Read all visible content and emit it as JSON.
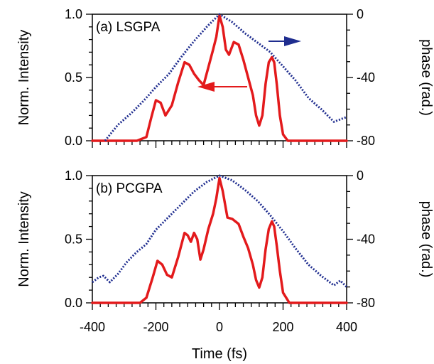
{
  "chart_data": [
    {
      "type": "line",
      "panel_label": "(a) LSGPA",
      "x_range": [
        -400,
        400
      ],
      "ylim_left": [
        0,
        1.0
      ],
      "ylim_right": [
        -80,
        0
      ],
      "ylabel_left": "Norm. Intensity",
      "ylabel_right": "phase (rad.)",
      "xlabel": "",
      "x_ticks": [
        -400,
        -200,
        0,
        200,
        400
      ],
      "y_ticks_left": [
        "0.0",
        "0.5",
        "1.0"
      ],
      "y_ticks_right": [
        "-80",
        "-40",
        "0"
      ],
      "grid": false,
      "series": [
        {
          "axis": "left",
          "color": "#e31a1c",
          "style": "solid",
          "x": [
            -400,
            -300,
            -260,
            -230,
            -215,
            -200,
            -185,
            -170,
            -150,
            -130,
            -110,
            -95,
            -80,
            -65,
            -50,
            -35,
            -20,
            -10,
            0,
            10,
            20,
            30,
            45,
            60,
            75,
            90,
            105,
            115,
            125,
            135,
            145,
            155,
            165,
            172,
            180,
            190,
            200,
            215,
            230,
            260,
            300,
            400
          ],
          "y": [
            0.0,
            0.0,
            0.0,
            0.03,
            0.18,
            0.32,
            0.3,
            0.2,
            0.28,
            0.46,
            0.62,
            0.6,
            0.53,
            0.48,
            0.44,
            0.58,
            0.72,
            0.82,
            0.99,
            0.9,
            0.72,
            0.68,
            0.78,
            0.76,
            0.64,
            0.5,
            0.36,
            0.2,
            0.12,
            0.2,
            0.45,
            0.62,
            0.66,
            0.62,
            0.45,
            0.2,
            0.05,
            0.0,
            0.0,
            0.0,
            0.0,
            0.0
          ]
        },
        {
          "axis": "right",
          "color": "#1f2d8f",
          "style": "dotted",
          "x": [
            -360,
            -320,
            -280,
            -240,
            -200,
            -160,
            -120,
            -80,
            -40,
            0,
            40,
            80,
            120,
            160,
            200,
            240,
            280,
            320,
            360,
            400
          ],
          "y": [
            -80,
            -70,
            -63,
            -55,
            -46,
            -38,
            -27,
            -17,
            -8,
            0,
            -5,
            -12,
            -18,
            -24,
            -33,
            -42,
            -53,
            -60,
            -68,
            -65
          ]
        }
      ],
      "arrows": [
        {
          "points_to": "left",
          "color": "#e31a1c"
        },
        {
          "points_to": "right",
          "color": "#1f2d8f"
        }
      ]
    },
    {
      "type": "line",
      "panel_label": "(b) PCGPA",
      "x_range": [
        -400,
        400
      ],
      "ylim_left": [
        0,
        1.0
      ],
      "ylim_right": [
        -80,
        0
      ],
      "ylabel_left": "Norm. Intensity",
      "ylabel_right": "phase (rad.)",
      "xlabel": "Time (fs)",
      "x_ticks": [
        -400,
        -200,
        0,
        200,
        400
      ],
      "y_ticks_left": [
        "0.0",
        "0.5",
        "1.0"
      ],
      "y_ticks_right": [
        "-80",
        "-40",
        "0"
      ],
      "grid": false,
      "series": [
        {
          "axis": "left",
          "color": "#e31a1c",
          "style": "solid",
          "x": [
            -400,
            -300,
            -250,
            -230,
            -210,
            -195,
            -180,
            -165,
            -150,
            -130,
            -110,
            -100,
            -90,
            -80,
            -70,
            -60,
            -50,
            -35,
            -20,
            -10,
            0,
            10,
            25,
            40,
            60,
            75,
            90,
            105,
            115,
            125,
            135,
            145,
            155,
            165,
            172,
            180,
            190,
            200,
            220,
            260,
            300,
            400
          ],
          "y": [
            0.0,
            0.0,
            0.0,
            0.04,
            0.2,
            0.33,
            0.3,
            0.22,
            0.2,
            0.36,
            0.55,
            0.53,
            0.48,
            0.55,
            0.5,
            0.34,
            0.42,
            0.58,
            0.7,
            0.82,
            0.98,
            0.88,
            0.67,
            0.66,
            0.62,
            0.52,
            0.43,
            0.3,
            0.18,
            0.12,
            0.2,
            0.42,
            0.58,
            0.64,
            0.6,
            0.45,
            0.25,
            0.08,
            0.0,
            0.0,
            0.0,
            0.0
          ]
        },
        {
          "axis": "right",
          "color": "#1f2d8f",
          "style": "dotted",
          "x": [
            -400,
            -380,
            -365,
            -345,
            -320,
            -290,
            -260,
            -230,
            -200,
            -160,
            -120,
            -80,
            -40,
            0,
            40,
            80,
            120,
            160,
            200,
            240,
            280,
            320,
            360,
            380,
            400
          ],
          "y": [
            -67,
            -64,
            -63,
            -67,
            -62,
            -54,
            -48,
            -43,
            -34,
            -26,
            -18,
            -10,
            -4,
            0,
            -3,
            -9,
            -16,
            -25,
            -35,
            -46,
            -56,
            -63,
            -69,
            -66,
            -70
          ]
        }
      ]
    }
  ]
}
